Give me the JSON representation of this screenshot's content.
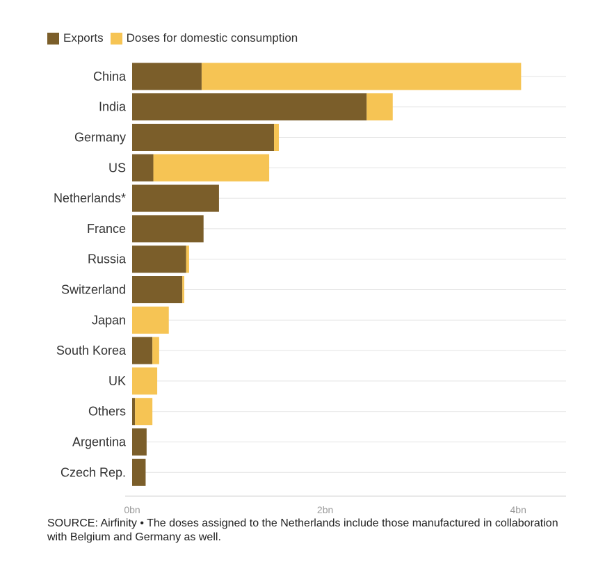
{
  "chart_data": {
    "type": "bar",
    "orientation": "horizontal",
    "stacked": true,
    "title": "",
    "xlabel": "",
    "ylabel": "",
    "categories": [
      "China",
      "India",
      "Germany",
      "US",
      "Netherlands*",
      "France",
      "Russia",
      "Switzerland",
      "Japan",
      "South Korea",
      "UK",
      "Others",
      "Argentina",
      "Czech Rep."
    ],
    "series": [
      {
        "name": "Exports",
        "color": "#7b5e2a",
        "values": [
          0.72,
          2.43,
          1.47,
          0.22,
          0.9,
          0.74,
          0.56,
          0.52,
          0.0,
          0.21,
          0.0,
          0.03,
          0.15,
          0.14
        ]
      },
      {
        "name": "Doses for domestic consumption",
        "color": "#f6c454",
        "values": [
          3.31,
          0.27,
          0.05,
          1.2,
          0.0,
          0.0,
          0.03,
          0.02,
          0.38,
          0.07,
          0.26,
          0.18,
          0.0,
          0.0
        ]
      }
    ],
    "xlim": [
      0,
      4.5
    ],
    "xticks": [
      0,
      2,
      4
    ],
    "xtick_labels": [
      "0bn",
      "2bn",
      "4bn"
    ],
    "grid": true,
    "legend_position": "top-left"
  },
  "source_note": "SOURCE: Airfinity • The doses assigned to the Netherlands include those manufactured in collaboration with Belgium and Germany as well.",
  "colors": {
    "grid": "#e3e3e3",
    "axis": "#cccccc",
    "text": "#333333",
    "tick_text": "#9a9a9a"
  }
}
